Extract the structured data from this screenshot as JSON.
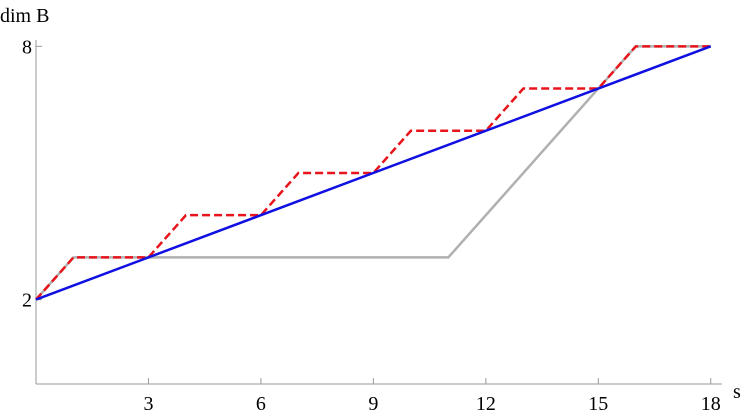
{
  "chart_data": {
    "type": "line",
    "x_label": "s",
    "y_label": "dim B",
    "xlim": [
      0,
      18.3
    ],
    "ylim": [
      0,
      8.15
    ],
    "xticks": [
      3,
      6,
      9,
      12,
      15,
      18
    ],
    "yticks": [
      2,
      8
    ],
    "series": [
      {
        "color": "#b0b0b0",
        "style": "solid",
        "x": [
          0,
          1,
          11,
          15,
          16,
          18
        ],
        "values": [
          2,
          3,
          3,
          7,
          8,
          8
        ]
      },
      {
        "color": "#e8141b",
        "style": "dashed",
        "x": [
          0,
          1,
          3,
          4,
          6,
          7,
          9,
          10,
          12,
          13,
          15,
          16,
          18
        ],
        "values": [
          2,
          3,
          3,
          4,
          4,
          5,
          5,
          6,
          6,
          7,
          7,
          8,
          8
        ]
      },
      {
        "color": "#1010e0",
        "style": "solid",
        "x": [
          0,
          18
        ],
        "values": [
          2,
          8
        ]
      }
    ]
  }
}
